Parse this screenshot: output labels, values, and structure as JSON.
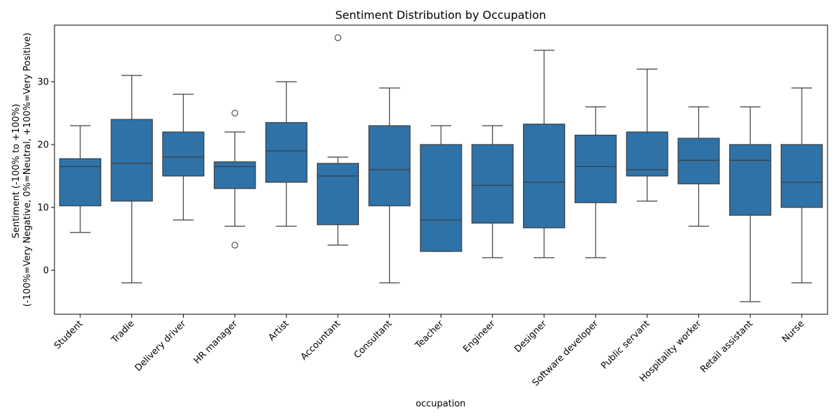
{
  "chart_data": {
    "type": "box",
    "title": "Sentiment Distribution by Occupation",
    "xlabel": "occupation",
    "ylabel_line1": "Sentiment (-100% to +100%)",
    "ylabel_line2": "(-100%=Very Negative, 0%=Neutral, +100%=Very Positive)",
    "ylim": [
      -7,
      39
    ],
    "yticks": [
      0,
      10,
      20,
      30
    ],
    "grid": false,
    "box_color": "#2e72a8",
    "line_color": "#3d3d3d",
    "categories": [
      "Student",
      "Tradie",
      "Delivery driver",
      "HR manager",
      "Artist",
      "Accountant",
      "Consultant",
      "Teacher",
      "Engineer",
      "Designer",
      "Software developer",
      "Public servant",
      "Hospitality worker",
      "Retail assistant",
      "Nurse"
    ],
    "boxes": [
      {
        "whislo": 6,
        "q1": 10.25,
        "med": 16.5,
        "q3": 17.75,
        "whishi": 23,
        "fliers": []
      },
      {
        "whislo": -2,
        "q1": 11,
        "med": 17,
        "q3": 24,
        "whishi": 31,
        "fliers": []
      },
      {
        "whislo": 8,
        "q1": 15,
        "med": 18,
        "q3": 22,
        "whishi": 28,
        "fliers": []
      },
      {
        "whislo": 7,
        "q1": 13,
        "med": 16.5,
        "q3": 17.25,
        "whishi": 22,
        "fliers": [
          4,
          25
        ]
      },
      {
        "whislo": 7,
        "q1": 14,
        "med": 19,
        "q3": 23.5,
        "whishi": 30,
        "fliers": []
      },
      {
        "whislo": 4,
        "q1": 7.25,
        "med": 15,
        "q3": 17,
        "whishi": 18,
        "fliers": [
          37
        ]
      },
      {
        "whislo": -2,
        "q1": 10.25,
        "med": 16,
        "q3": 23,
        "whishi": 29,
        "fliers": []
      },
      {
        "whislo": 3,
        "q1": 3,
        "med": 8,
        "q3": 20,
        "whishi": 23,
        "fliers": []
      },
      {
        "whislo": 2,
        "q1": 7.5,
        "med": 13.5,
        "q3": 20,
        "whishi": 23,
        "fliers": []
      },
      {
        "whislo": 2,
        "q1": 6.75,
        "med": 14,
        "q3": 23.25,
        "whishi": 35,
        "fliers": []
      },
      {
        "whislo": 2,
        "q1": 10.75,
        "med": 16.5,
        "q3": 21.5,
        "whishi": 26,
        "fliers": []
      },
      {
        "whislo": 11,
        "q1": 15,
        "med": 16,
        "q3": 22,
        "whishi": 32,
        "fliers": []
      },
      {
        "whislo": 7,
        "q1": 13.75,
        "med": 17.5,
        "q3": 21,
        "whishi": 26,
        "fliers": []
      },
      {
        "whislo": -5,
        "q1": 8.75,
        "med": 17.5,
        "q3": 20,
        "whishi": 26,
        "fliers": []
      },
      {
        "whislo": -2,
        "q1": 10,
        "med": 14,
        "q3": 20,
        "whishi": 29,
        "fliers": []
      }
    ]
  }
}
